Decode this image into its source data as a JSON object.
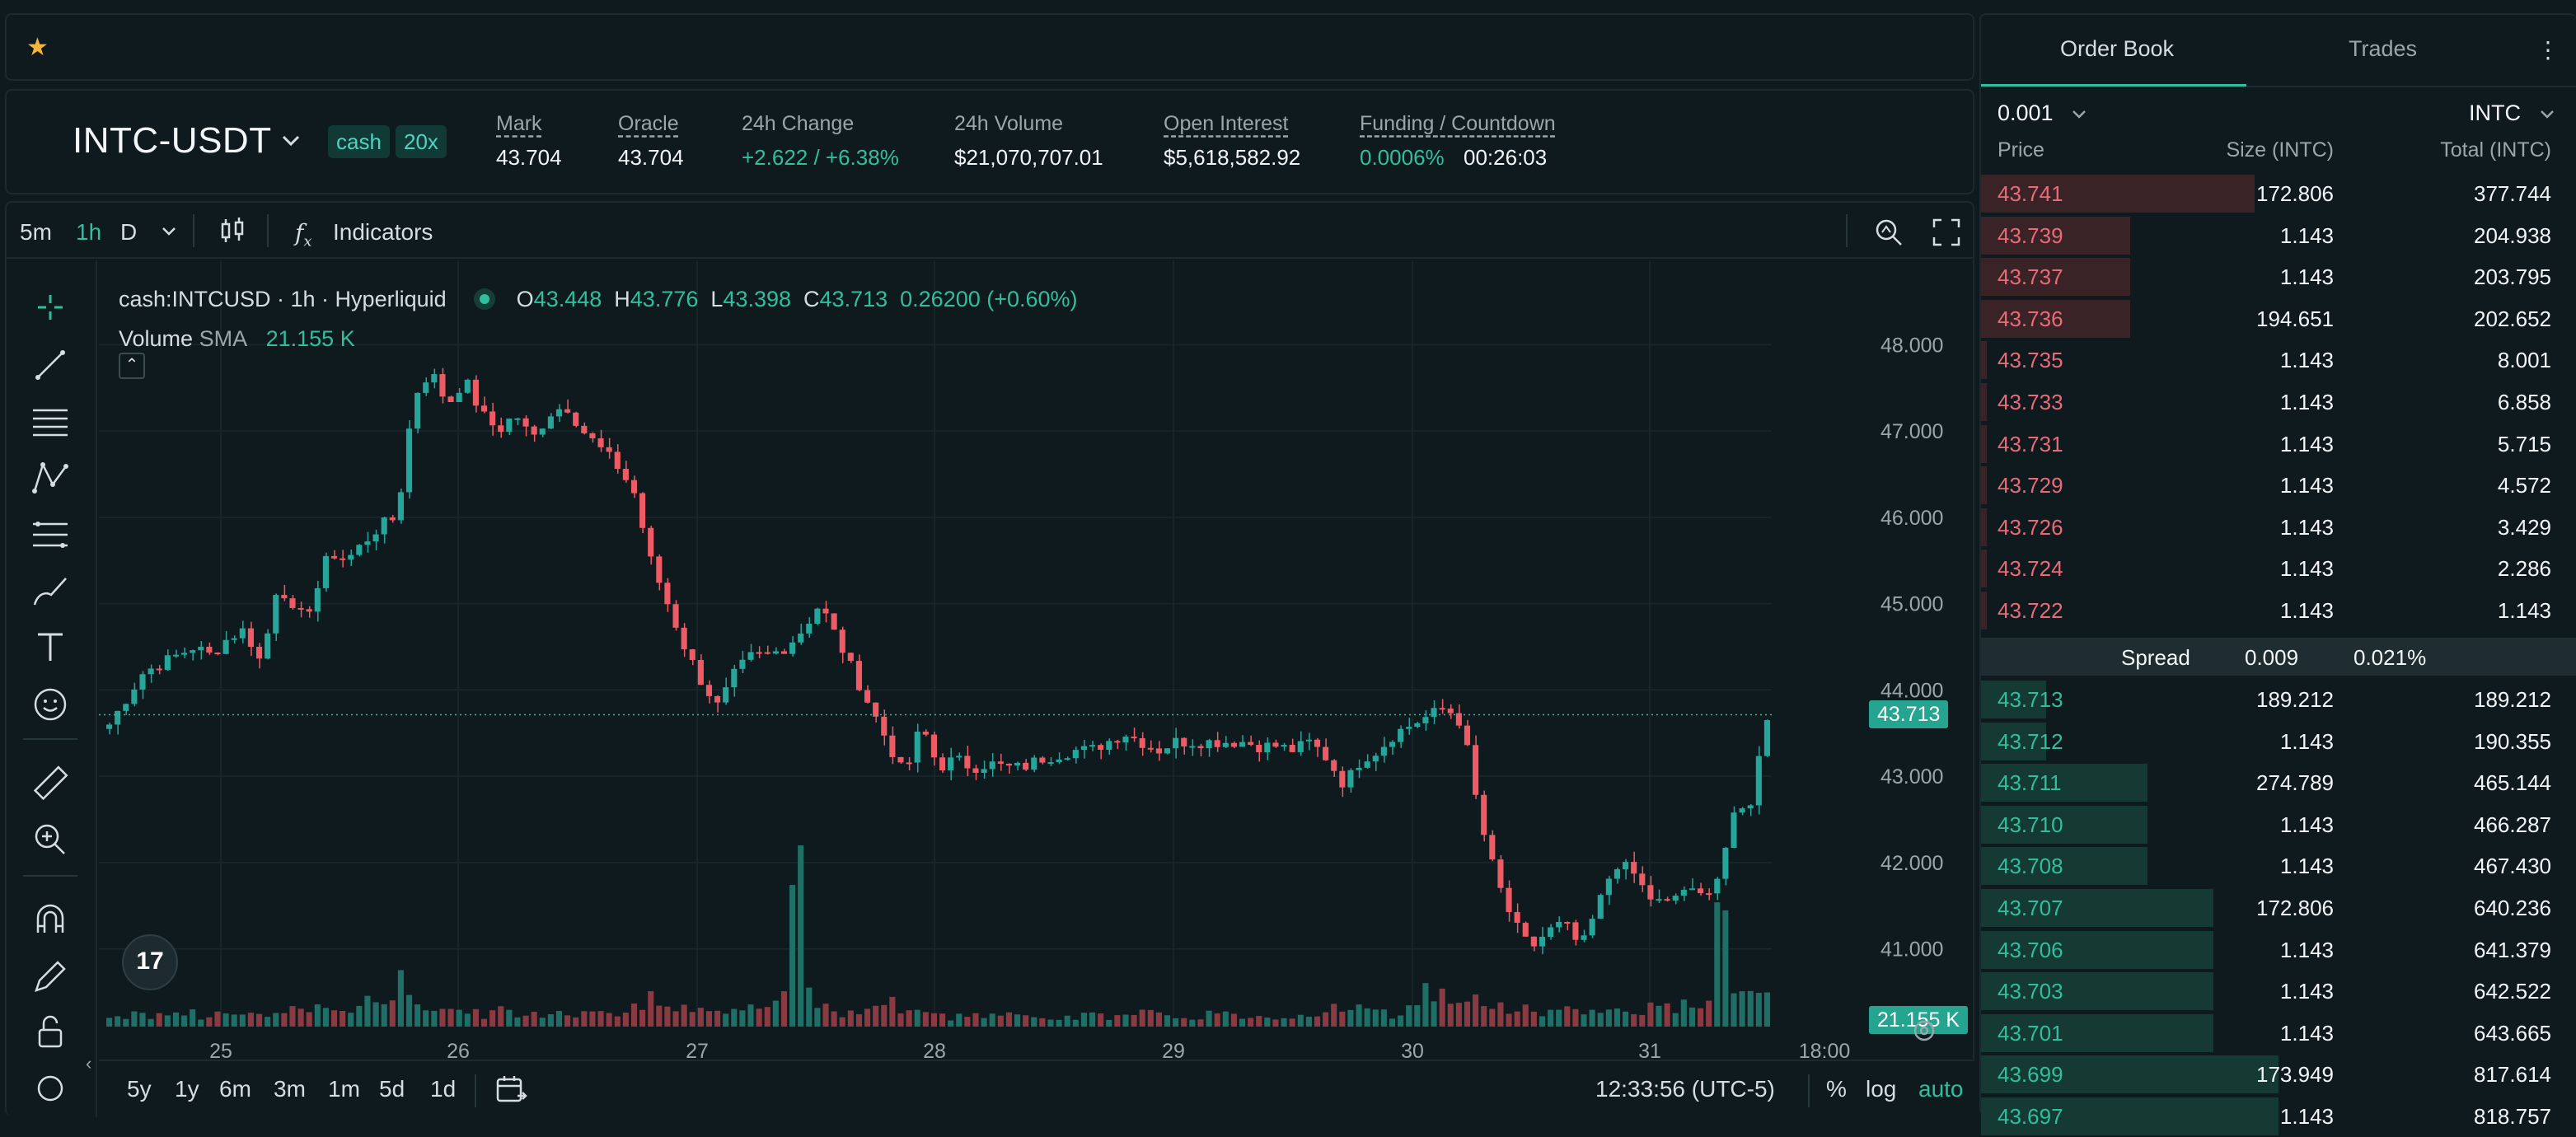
{
  "header": {
    "pair": "INTC-USDT",
    "tags": [
      "cash",
      "20x"
    ],
    "stats": [
      {
        "label": "Mark",
        "value": "43.704",
        "underline": true
      },
      {
        "label": "Oracle",
        "value": "43.704",
        "underline": true
      },
      {
        "label": "24h Change",
        "value": "+2.622 / +6.38%",
        "underline": false,
        "green": true
      },
      {
        "label": "24h Volume",
        "value": "$21,070,707.01",
        "underline": false
      },
      {
        "label": "Open Interest",
        "value": "$5,618,582.92",
        "underline": true
      },
      {
        "label": "Funding / Countdown",
        "value": "0.0006%",
        "value2": "00:26:03",
        "underline": true
      }
    ]
  },
  "toolbar": {
    "intervals": [
      "5m",
      "1h",
      "D"
    ],
    "active_interval": "1h",
    "indicators_label": "Indicators"
  },
  "legend": {
    "symbol": "cash:INTCUSD · 1h · Hyperliquid",
    "o_label": "O",
    "o": "43.448",
    "h_label": "H",
    "h": "43.776",
    "l_label": "L",
    "l": "43.398",
    "c_label": "C",
    "c": "43.713",
    "change": "0.26200 (+0.60%)",
    "volume_label": "Volume",
    "sma_label": "SMA",
    "sma_value": "21.155 K",
    "tv_logo": "17"
  },
  "chart_data": {
    "type": "candlestick",
    "y_axis_ticks": [
      "48.000",
      "47.000",
      "46.000",
      "45.000",
      "44.000",
      "43.000",
      "42.000",
      "41.000"
    ],
    "ylim": [
      40.1,
      48.9
    ],
    "x_axis_ticks": [
      "25",
      "26",
      "27",
      "28",
      "29",
      "30",
      "31",
      "18:00"
    ],
    "current_price": "43.713",
    "current_volume": "21.155 K",
    "close_path": [
      43.6,
      43.9,
      44.2,
      44.3,
      44.4,
      44.5,
      44.4,
      44.6,
      44.7,
      44.3,
      45.3,
      44.8,
      45.0,
      45.6,
      45.5,
      45.7,
      45.9,
      46.0,
      47.4,
      47.7,
      47.3,
      47.6,
      47.2,
      47.0,
      47.2,
      46.9,
      47.2,
      47.3,
      47.0,
      46.8,
      46.6,
      46.3,
      45.5,
      45.0,
      44.5,
      44.1,
      43.8,
      44.2,
      44.4,
      44.4,
      44.5,
      44.7,
      45.0,
      44.6,
      44.2,
      43.8,
      43.4,
      43.0,
      43.6,
      43.1,
      43.2,
      43.1,
      43.15,
      43.1,
      43.1,
      43.2,
      43.25,
      43.3,
      43.3,
      43.4,
      43.5,
      43.4,
      43.3,
      43.4,
      43.4,
      43.4,
      43.4,
      43.4,
      43.35,
      43.35,
      43.3,
      43.4,
      43.2,
      42.9,
      43.2,
      43.3,
      43.5,
      43.6,
      43.7,
      43.8,
      43.6,
      42.5,
      41.8,
      41.3,
      41.0,
      41.2,
      41.3,
      41.0,
      41.5,
      42.0,
      41.9,
      41.6,
      41.5,
      41.7,
      41.6,
      41.8,
      42.5,
      42.7,
      43.7
    ],
    "volume_path": [
      0.2,
      0.25,
      0.2,
      0.3,
      0.35,
      0.2,
      0.25,
      0.3,
      0.2,
      0.25,
      0.3,
      0.4,
      0.35,
      0.3,
      0.45,
      0.5,
      0.8,
      0.6,
      0.4,
      0.35,
      0.3,
      0.25,
      0.3,
      0.2,
      0.25,
      0.3,
      0.25,
      0.35,
      0.3,
      0.25,
      0.35,
      0.6,
      0.5,
      0.3,
      0.25,
      0.3,
      0.35,
      0.4,
      0.5,
      3.5,
      0.6,
      0.4,
      0.3,
      0.35,
      0.5,
      0.3,
      0.25,
      0.3,
      0.2,
      0.25,
      0.2,
      0.2,
      0.25,
      0.2,
      0.2,
      0.2,
      0.25,
      0.2,
      0.2,
      0.25,
      0.2,
      0.2,
      0.2,
      0.25,
      0.2,
      0.2,
      0.2,
      0.2,
      0.25,
      0.3,
      0.4,
      0.35,
      0.3,
      0.25,
      0.5,
      0.7,
      0.6,
      0.4,
      0.5,
      0.35,
      0.4,
      0.35,
      0.3,
      0.4,
      0.3,
      0.35,
      0.3,
      0.35,
      0.4,
      0.35,
      0.4,
      0.5,
      1.8,
      0.6,
      0.7,
      0.5
    ]
  },
  "range_bar": {
    "ranges": [
      "5y",
      "1y",
      "6m",
      "3m",
      "1m",
      "5d",
      "1d"
    ],
    "time": "12:33:56 (UTC-5)",
    "pct": "%",
    "log": "log",
    "auto": "auto"
  },
  "orderbook": {
    "tab_book": "Order Book",
    "tab_trades": "Trades",
    "tick": "0.001",
    "unit": "INTC",
    "col_price": "Price",
    "col_size": "Size (INTC)",
    "col_total": "Total (INTC)",
    "asks": [
      {
        "price": "43.741",
        "size": "172.806",
        "total": "377.744",
        "depth": 0.46
      },
      {
        "price": "43.739",
        "size": "1.143",
        "total": "204.938",
        "depth": 0.25
      },
      {
        "price": "43.737",
        "size": "1.143",
        "total": "203.795",
        "depth": 0.25
      },
      {
        "price": "43.736",
        "size": "194.651",
        "total": "202.652",
        "depth": 0.25
      },
      {
        "price": "43.735",
        "size": "1.143",
        "total": "8.001",
        "depth": 0.01
      },
      {
        "price": "43.733",
        "size": "1.143",
        "total": "6.858",
        "depth": 0.01
      },
      {
        "price": "43.731",
        "size": "1.143",
        "total": "5.715",
        "depth": 0.01
      },
      {
        "price": "43.729",
        "size": "1.143",
        "total": "4.572",
        "depth": 0.01
      },
      {
        "price": "43.726",
        "size": "1.143",
        "total": "3.429",
        "depth": 0.01
      },
      {
        "price": "43.724",
        "size": "1.143",
        "total": "2.286",
        "depth": 0.01
      },
      {
        "price": "43.722",
        "size": "1.143",
        "total": "1.143",
        "depth": 0.01
      }
    ],
    "spread_label": "Spread",
    "spread_value": "0.009",
    "spread_pct": "0.021%",
    "bids": [
      {
        "price": "43.713",
        "size": "189.212",
        "total": "189.212",
        "depth": 0.11
      },
      {
        "price": "43.712",
        "size": "1.143",
        "total": "190.355",
        "depth": 0.11
      },
      {
        "price": "43.711",
        "size": "274.789",
        "total": "465.144",
        "depth": 0.28
      },
      {
        "price": "43.710",
        "size": "1.143",
        "total": "466.287",
        "depth": 0.28
      },
      {
        "price": "43.708",
        "size": "1.143",
        "total": "467.430",
        "depth": 0.28
      },
      {
        "price": "43.707",
        "size": "172.806",
        "total": "640.236",
        "depth": 0.39
      },
      {
        "price": "43.706",
        "size": "1.143",
        "total": "641.379",
        "depth": 0.39
      },
      {
        "price": "43.703",
        "size": "1.143",
        "total": "642.522",
        "depth": 0.39
      },
      {
        "price": "43.701",
        "size": "1.143",
        "total": "643.665",
        "depth": 0.39
      },
      {
        "price": "43.699",
        "size": "173.949",
        "total": "817.614",
        "depth": 0.5
      },
      {
        "price": "43.697",
        "size": "1.143",
        "total": "818.757",
        "depth": 0.5
      }
    ]
  }
}
